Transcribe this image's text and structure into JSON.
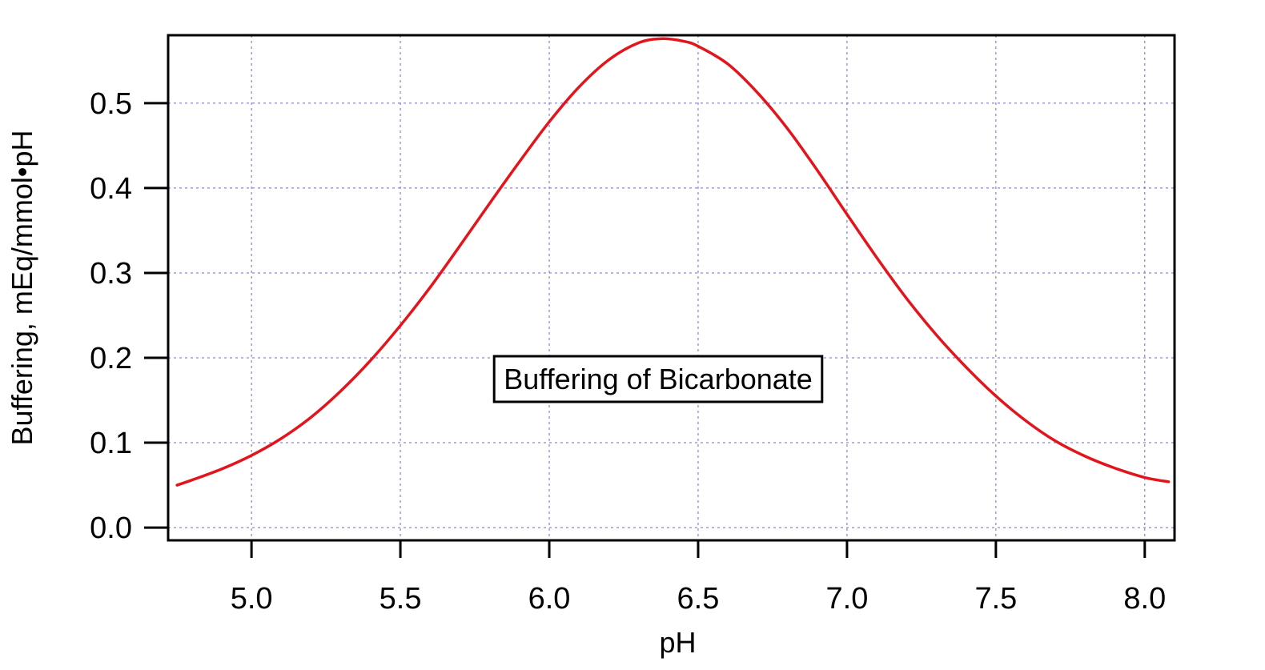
{
  "chart_data": {
    "type": "line",
    "title": "",
    "xlabel": "pH",
    "ylabel": "Buffering, mEq/mmol•pH",
    "xlim": [
      4.72,
      8.1
    ],
    "ylim": [
      -0.015,
      0.58
    ],
    "xticks": [
      5.0,
      5.5,
      6.0,
      6.5,
      7.0,
      7.5,
      8.0
    ],
    "xtick_labels": [
      "5.0",
      "5.5",
      "6.0",
      "6.5",
      "7.0",
      "7.5",
      "8.0"
    ],
    "yticks": [
      0.0,
      0.1,
      0.2,
      0.3,
      0.4,
      0.5
    ],
    "ytick_labels": [
      "0.0",
      "0.1",
      "0.2",
      "0.3",
      "0.4",
      "0.5"
    ],
    "grid": true,
    "annotation": "Buffering of Bicarbonate",
    "series": [
      {
        "color": "#e3141b",
        "x": [
          4.75,
          4.8,
          4.9,
          5.0,
          5.1,
          5.2,
          5.3,
          5.4,
          5.5,
          5.6,
          5.7,
          5.8,
          5.9,
          6.0,
          6.1,
          6.2,
          6.3,
          6.38,
          6.45,
          6.5,
          6.6,
          6.7,
          6.8,
          6.9,
          7.0,
          7.1,
          7.2,
          7.3,
          7.4,
          7.5,
          7.6,
          7.7,
          7.8,
          7.9,
          8.0,
          8.08
        ],
        "y": [
          0.05,
          0.056,
          0.069,
          0.085,
          0.105,
          0.13,
          0.161,
          0.197,
          0.238,
          0.283,
          0.332,
          0.382,
          0.431,
          0.478,
          0.519,
          0.551,
          0.571,
          0.576,
          0.573,
          0.567,
          0.546,
          0.512,
          0.47,
          0.421,
          0.369,
          0.318,
          0.27,
          0.227,
          0.189,
          0.155,
          0.126,
          0.102,
          0.084,
          0.07,
          0.059,
          0.054
        ]
      }
    ]
  }
}
